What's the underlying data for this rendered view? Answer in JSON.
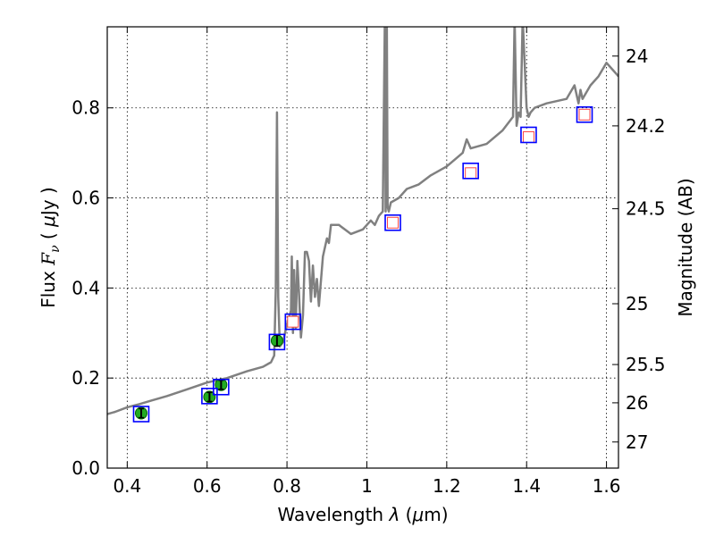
{
  "chart_data": {
    "type": "scatter",
    "xlabel": "Wavelength  λ (μm)",
    "ylabel": "Flux  F_ν  ( μJy )",
    "ylabel_parts": {
      "a": "Flux ",
      "b": "F",
      "c": "ν",
      "d": "  ( ",
      "e": "μ",
      "f": "Jy )"
    },
    "xlabel_parts": {
      "a": "Wavelength  ",
      "b": "λ",
      "c": " (",
      "d": "μ",
      "e": "m)"
    },
    "y2label": "Magnitude (AB)",
    "xlim": [
      0.35,
      1.63
    ],
    "ylim": [
      0.0,
      0.98
    ],
    "grid": true,
    "x_ticks": [
      0.4,
      0.6,
      0.8,
      1.0,
      1.2,
      1.4,
      1.6
    ],
    "x_tick_labels": [
      "0.4",
      "0.6",
      "0.8",
      "1",
      "1.2",
      "1.4",
      "1.6"
    ],
    "y_ticks": [
      0.0,
      0.2,
      0.4,
      0.6,
      0.8
    ],
    "y_tick_labels": [
      "0.0",
      "0.2",
      "0.4",
      "0.6",
      "0.8"
    ],
    "y2_ticks": [
      {
        "label": "24",
        "flux": 0.915
      },
      {
        "label": "24.2",
        "flux": 0.76
      },
      {
        "label": "24.5",
        "flux": 0.576
      },
      {
        "label": "25",
        "flux": 0.365
      },
      {
        "label": "25.5",
        "flux": 0.23
      },
      {
        "label": "26",
        "flux": 0.145
      },
      {
        "label": "27",
        "flux": 0.058
      }
    ],
    "colors": {
      "spectrum": "#808080",
      "model_box": "#0000ff",
      "observed_fill": "#22aa22",
      "observed_edge": "#006600",
      "upper_fill": "#ffffff",
      "upper_edge": "#ff4444"
    },
    "model_photometry": {
      "x": [
        0.435,
        0.606,
        0.635,
        0.775,
        0.815,
        1.065,
        1.26,
        1.405,
        1.545
      ],
      "y": [
        0.12,
        0.16,
        0.18,
        0.28,
        0.325,
        0.545,
        0.66,
        0.74,
        0.785
      ]
    },
    "observed_detections": {
      "x": [
        0.435,
        0.606,
        0.635,
        0.775
      ],
      "y": [
        0.122,
        0.158,
        0.185,
        0.283
      ],
      "err": [
        0.01,
        0.01,
        0.01,
        0.012
      ]
    },
    "observed_nondetections": {
      "x": [
        0.815,
        1.065,
        1.26,
        1.405,
        1.545
      ],
      "y": [
        0.325,
        0.545,
        0.655,
        0.735,
        0.785
      ]
    },
    "spectrum": {
      "x": [
        0.35,
        0.37,
        0.4,
        0.43,
        0.46,
        0.5,
        0.55,
        0.6,
        0.65,
        0.7,
        0.74,
        0.76,
        0.768,
        0.772,
        0.775,
        0.778,
        0.782,
        0.79,
        0.8,
        0.81,
        0.812,
        0.815,
        0.818,
        0.822,
        0.826,
        0.83,
        0.835,
        0.84,
        0.845,
        0.85,
        0.855,
        0.86,
        0.865,
        0.87,
        0.875,
        0.88,
        0.89,
        0.9,
        0.905,
        0.91,
        0.93,
        0.96,
        0.99,
        1.01,
        1.02,
        1.03,
        1.04,
        1.045,
        1.047,
        1.05,
        1.052,
        1.055,
        1.06,
        1.08,
        1.1,
        1.13,
        1.16,
        1.2,
        1.24,
        1.25,
        1.26,
        1.3,
        1.34,
        1.366,
        1.37,
        1.375,
        1.38,
        1.385,
        1.39,
        1.4,
        1.405,
        1.41,
        1.42,
        1.45,
        1.5,
        1.52,
        1.53,
        1.535,
        1.54,
        1.56,
        1.58,
        1.6,
        1.63
      ],
      "y": [
        0.12,
        0.125,
        0.135,
        0.142,
        0.15,
        0.16,
        0.175,
        0.19,
        0.2,
        0.215,
        0.225,
        0.235,
        0.25,
        0.4,
        0.79,
        0.38,
        0.27,
        0.28,
        0.32,
        0.35,
        0.47,
        0.3,
        0.44,
        0.31,
        0.46,
        0.39,
        0.29,
        0.34,
        0.48,
        0.48,
        0.46,
        0.37,
        0.45,
        0.38,
        0.42,
        0.36,
        0.47,
        0.51,
        0.5,
        0.54,
        0.54,
        0.52,
        0.53,
        0.55,
        0.54,
        0.56,
        0.57,
        1.0,
        0.57,
        1.0,
        0.58,
        0.57,
        0.59,
        0.6,
        0.62,
        0.63,
        0.65,
        0.67,
        0.7,
        0.73,
        0.71,
        0.72,
        0.75,
        0.78,
        1.0,
        0.76,
        0.79,
        0.78,
        1.0,
        0.8,
        0.78,
        0.79,
        0.8,
        0.81,
        0.82,
        0.85,
        0.81,
        0.84,
        0.82,
        0.85,
        0.87,
        0.9,
        0.87
      ]
    }
  }
}
